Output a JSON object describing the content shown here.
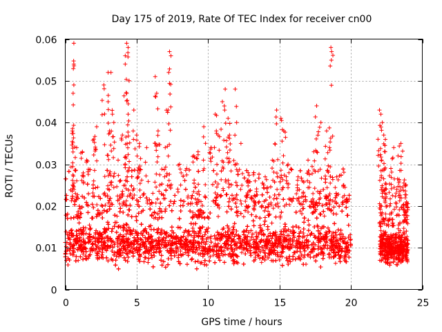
{
  "chart_data": {
    "type": "scatter",
    "title": "Day 175 of 2019, Rate Of TEC Index for receiver cn00",
    "xlabel": "GPS time / hours",
    "ylabel": "ROTI / TECUs",
    "xlim": [
      0,
      25
    ],
    "ylim": [
      0,
      0.06
    ],
    "xticks": [
      0,
      5,
      10,
      15,
      20,
      25
    ],
    "xtick_labels": [
      "0",
      "5",
      "10",
      "15",
      "20",
      "25"
    ],
    "yticks": [
      0,
      0.01,
      0.02,
      0.03,
      0.04,
      0.05,
      0.06
    ],
    "ytick_labels": [
      "0",
      "0.01",
      "0.02",
      "0.03",
      "0.04",
      "0.05",
      "0.06"
    ],
    "grid": true,
    "marker": "plus",
    "color": "#ff0000",
    "series": [
      {
        "name": "ROTI",
        "segments": [
          {
            "x_start": 0.0,
            "x_end": 20.0,
            "typical_min": 0.005,
            "typical_max": 0.017,
            "dense_center": 0.011
          },
          {
            "x_start": 22.0,
            "x_end": 24.0,
            "typical_min": 0.005,
            "typical_max": 0.015,
            "dense_center": 0.01
          }
        ],
        "data_gap": [
          20.0,
          22.0
        ],
        "spikes": [
          {
            "x": 0.6,
            "y": 0.059
          },
          {
            "x": 0.6,
            "y": 0.054
          },
          {
            "x": 0.6,
            "y": 0.049
          },
          {
            "x": 0.55,
            "y": 0.047
          },
          {
            "x": 0.5,
            "y": 0.038
          },
          {
            "x": 0.8,
            "y": 0.034
          },
          {
            "x": 1.2,
            "y": 0.033
          },
          {
            "x": 1.5,
            "y": 0.031
          },
          {
            "x": 2.0,
            "y": 0.036
          },
          {
            "x": 2.2,
            "y": 0.039
          },
          {
            "x": 2.7,
            "y": 0.049
          },
          {
            "x": 3.0,
            "y": 0.052
          },
          {
            "x": 3.2,
            "y": 0.052
          },
          {
            "x": 3.0,
            "y": 0.045
          },
          {
            "x": 3.3,
            "y": 0.042
          },
          {
            "x": 3.1,
            "y": 0.038
          },
          {
            "x": 3.4,
            "y": 0.04
          },
          {
            "x": 3.7,
            "y": 0.031
          },
          {
            "x": 4.2,
            "y": 0.056
          },
          {
            "x": 4.3,
            "y": 0.059
          },
          {
            "x": 4.4,
            "y": 0.058
          },
          {
            "x": 4.2,
            "y": 0.054
          },
          {
            "x": 4.3,
            "y": 0.047
          },
          {
            "x": 4.4,
            "y": 0.042
          },
          {
            "x": 4.0,
            "y": 0.037
          },
          {
            "x": 4.8,
            "y": 0.043
          },
          {
            "x": 5.0,
            "y": 0.037
          },
          {
            "x": 5.2,
            "y": 0.035
          },
          {
            "x": 5.7,
            "y": 0.034
          },
          {
            "x": 6.3,
            "y": 0.051
          },
          {
            "x": 6.4,
            "y": 0.047
          },
          {
            "x": 6.5,
            "y": 0.038
          },
          {
            "x": 7.3,
            "y": 0.057
          },
          {
            "x": 7.4,
            "y": 0.056
          },
          {
            "x": 7.2,
            "y": 0.043
          },
          {
            "x": 7.0,
            "y": 0.034
          },
          {
            "x": 8.0,
            "y": 0.03
          },
          {
            "x": 8.5,
            "y": 0.029
          },
          {
            "x": 9.0,
            "y": 0.032
          },
          {
            "x": 9.3,
            "y": 0.033
          },
          {
            "x": 9.7,
            "y": 0.039
          },
          {
            "x": 10.2,
            "y": 0.034
          },
          {
            "x": 10.5,
            "y": 0.042
          },
          {
            "x": 10.7,
            "y": 0.037
          },
          {
            "x": 11.0,
            "y": 0.045
          },
          {
            "x": 11.2,
            "y": 0.048
          },
          {
            "x": 11.4,
            "y": 0.041
          },
          {
            "x": 11.5,
            "y": 0.037
          },
          {
            "x": 11.9,
            "y": 0.048
          },
          {
            "x": 12.0,
            "y": 0.04
          },
          {
            "x": 12.3,
            "y": 0.035
          },
          {
            "x": 12.8,
            "y": 0.028
          },
          {
            "x": 13.3,
            "y": 0.026
          },
          {
            "x": 14.0,
            "y": 0.027
          },
          {
            "x": 14.5,
            "y": 0.031
          },
          {
            "x": 14.8,
            "y": 0.043
          },
          {
            "x": 15.1,
            "y": 0.041
          },
          {
            "x": 15.3,
            "y": 0.038
          },
          {
            "x": 15.6,
            "y": 0.03
          },
          {
            "x": 16.3,
            "y": 0.027
          },
          {
            "x": 16.6,
            "y": 0.026
          },
          {
            "x": 17.0,
            "y": 0.031
          },
          {
            "x": 17.4,
            "y": 0.033
          },
          {
            "x": 17.6,
            "y": 0.044
          },
          {
            "x": 17.9,
            "y": 0.04
          },
          {
            "x": 18.3,
            "y": 0.038
          },
          {
            "x": 18.5,
            "y": 0.034
          },
          {
            "x": 18.6,
            "y": 0.058
          },
          {
            "x": 18.65,
            "y": 0.057
          },
          {
            "x": 19.0,
            "y": 0.027
          },
          {
            "x": 19.5,
            "y": 0.025
          },
          {
            "x": 22.0,
            "y": 0.043
          },
          {
            "x": 22.1,
            "y": 0.042
          },
          {
            "x": 22.2,
            "y": 0.04
          },
          {
            "x": 22.3,
            "y": 0.037
          },
          {
            "x": 22.4,
            "y": 0.033
          },
          {
            "x": 22.8,
            "y": 0.029
          },
          {
            "x": 23.0,
            "y": 0.034
          },
          {
            "x": 23.3,
            "y": 0.032
          },
          {
            "x": 23.5,
            "y": 0.035
          },
          {
            "x": 23.8,
            "y": 0.025
          }
        ]
      }
    ]
  }
}
